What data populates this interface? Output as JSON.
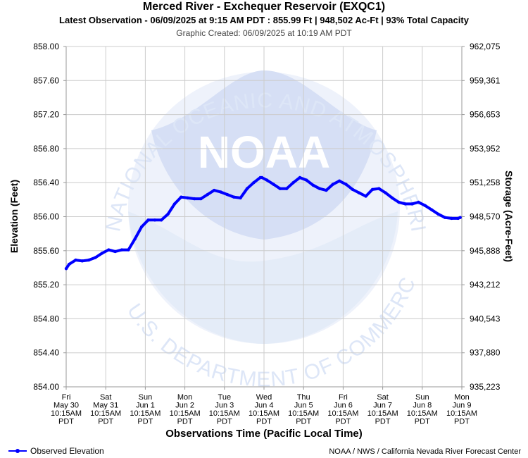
{
  "titles": {
    "main": "Merced River - Exchequer Reservoir (EXQC1)",
    "latest": "Latest Observation - 06/09/2025 at 9:15 AM PDT : 855.99 Ft | 948,502 Ac-Ft | 93% Total Capacity",
    "created": "Graphic Created: 06/09/2025 at 10:19 AM PDT"
  },
  "watermark": {
    "logo_text": "NOAA",
    "ring_text": "NATIONAL OCEANIC AND ATMOSPHERIC ADMINISTRATION",
    "bottom_text": "U.S. DEPARTMENT OF COMMERCE"
  },
  "legend": {
    "label": "Observed Elevation"
  },
  "credit": "NOAA / NWS / California Nevada River Forecast Center",
  "colors": {
    "series": "#0000ff",
    "grid": "#cccccc",
    "watermark": "#dde6f7"
  },
  "chart_data": {
    "type": "line",
    "xlabel": "Observations Time (Pacific Local Time)",
    "ylabel": "Elevation (Feet)",
    "ylabel_right": "Storage (Acre-Feet)",
    "ylim": [
      854.0,
      858.0
    ],
    "grid": true,
    "legend_position": "bottom-left",
    "y_ticks": [
      "858.00",
      "857.60",
      "857.20",
      "856.80",
      "856.40",
      "856.00",
      "855.60",
      "855.20",
      "854.80",
      "854.40",
      "854.00"
    ],
    "y_ticks_right": [
      "962,075",
      "959,361",
      "956,653",
      "953,952",
      "951,258",
      "948,570",
      "945,888",
      "943,212",
      "940,543",
      "937,880",
      "935,223"
    ],
    "x_ticks": [
      [
        "Fri",
        "May 30",
        "10:15AM",
        "PDT"
      ],
      [
        "Sat",
        "May 31",
        "10:15AM",
        "PDT"
      ],
      [
        "Sun",
        "Jun 1",
        "10:15AM",
        "PDT"
      ],
      [
        "Mon",
        "Jun 2",
        "10:15AM",
        "PDT"
      ],
      [
        "Tue",
        "Jun 3",
        "10:15AM",
        "PDT"
      ],
      [
        "Wed",
        "Jun 4",
        "10:15AM",
        "PDT"
      ],
      [
        "Thu",
        "Jun 5",
        "10:15AM",
        "PDT"
      ],
      [
        "Fri",
        "Jun 6",
        "10:15AM",
        "PDT"
      ],
      [
        "Sat",
        "Jun 7",
        "10:15AM",
        "PDT"
      ],
      [
        "Sun",
        "Jun 8",
        "10:15AM",
        "PDT"
      ],
      [
        "Mon",
        "Jun 9",
        "10:15AM",
        "PDT"
      ]
    ],
    "x_tick_dates": [
      "2025-05-30",
      "2025-05-31",
      "2025-06-01",
      "2025-06-02",
      "2025-06-03",
      "2025-06-04",
      "2025-06-05",
      "2025-06-06",
      "2025-06-07",
      "2025-06-08",
      "2025-06-09"
    ],
    "series": [
      {
        "name": "Observed Elevation",
        "x": [
          "2025-05-30 10:15",
          "2025-05-30 12:00",
          "2025-05-30 16:00",
          "2025-05-30 20:00",
          "2025-05-31 00:00",
          "2025-05-31 04:00",
          "2025-05-31 08:00",
          "2025-05-31 12:00",
          "2025-05-31 16:00",
          "2025-05-31 20:00",
          "2025-06-01 00:00",
          "2025-06-01 04:00",
          "2025-06-01 08:00",
          "2025-06-01 12:00",
          "2025-06-01 16:00",
          "2025-06-01 20:00",
          "2025-06-02 00:00",
          "2025-06-02 04:00",
          "2025-06-02 08:00",
          "2025-06-02 12:00",
          "2025-06-02 16:00",
          "2025-06-02 20:00",
          "2025-06-03 00:00",
          "2025-06-03 04:00",
          "2025-06-03 08:00",
          "2025-06-03 12:00",
          "2025-06-03 16:00",
          "2025-06-03 20:00",
          "2025-06-04 00:00",
          "2025-06-04 04:00",
          "2025-06-04 08:00",
          "2025-06-04 09:00",
          "2025-06-04 12:00",
          "2025-06-04 16:00",
          "2025-06-04 20:00",
          "2025-06-05 00:00",
          "2025-06-05 04:00",
          "2025-06-05 08:00",
          "2025-06-05 12:00",
          "2025-06-05 16:00",
          "2025-06-05 20:00",
          "2025-06-06 00:00",
          "2025-06-06 04:00",
          "2025-06-06 08:00",
          "2025-06-06 12:00",
          "2025-06-06 16:00",
          "2025-06-06 20:00",
          "2025-06-07 00:00",
          "2025-06-07 04:00",
          "2025-06-07 08:00",
          "2025-06-07 12:00",
          "2025-06-07 16:00",
          "2025-06-07 20:00",
          "2025-06-08 00:00",
          "2025-06-08 04:00",
          "2025-06-08 08:00",
          "2025-06-08 12:00",
          "2025-06-08 16:00",
          "2025-06-08 20:00",
          "2025-06-09 00:00",
          "2025-06-09 04:00",
          "2025-06-09 08:00",
          "2025-06-09 09:15"
        ],
        "values": [
          855.39,
          855.44,
          855.49,
          855.48,
          855.49,
          855.52,
          855.57,
          855.61,
          855.59,
          855.61,
          855.61,
          855.74,
          855.88,
          855.96,
          855.96,
          855.96,
          856.03,
          856.15,
          856.23,
          856.22,
          856.21,
          856.21,
          856.26,
          856.31,
          856.29,
          856.26,
          856.23,
          856.22,
          856.33,
          856.4,
          856.46,
          856.46,
          856.43,
          856.38,
          856.33,
          856.33,
          856.4,
          856.46,
          856.43,
          856.37,
          856.33,
          856.31,
          856.38,
          856.42,
          856.38,
          856.32,
          856.28,
          856.24,
          856.32,
          856.33,
          856.28,
          856.22,
          856.17,
          856.15,
          856.15,
          856.17,
          856.13,
          856.08,
          856.03,
          855.99,
          855.98,
          855.98,
          855.99
        ]
      }
    ]
  }
}
